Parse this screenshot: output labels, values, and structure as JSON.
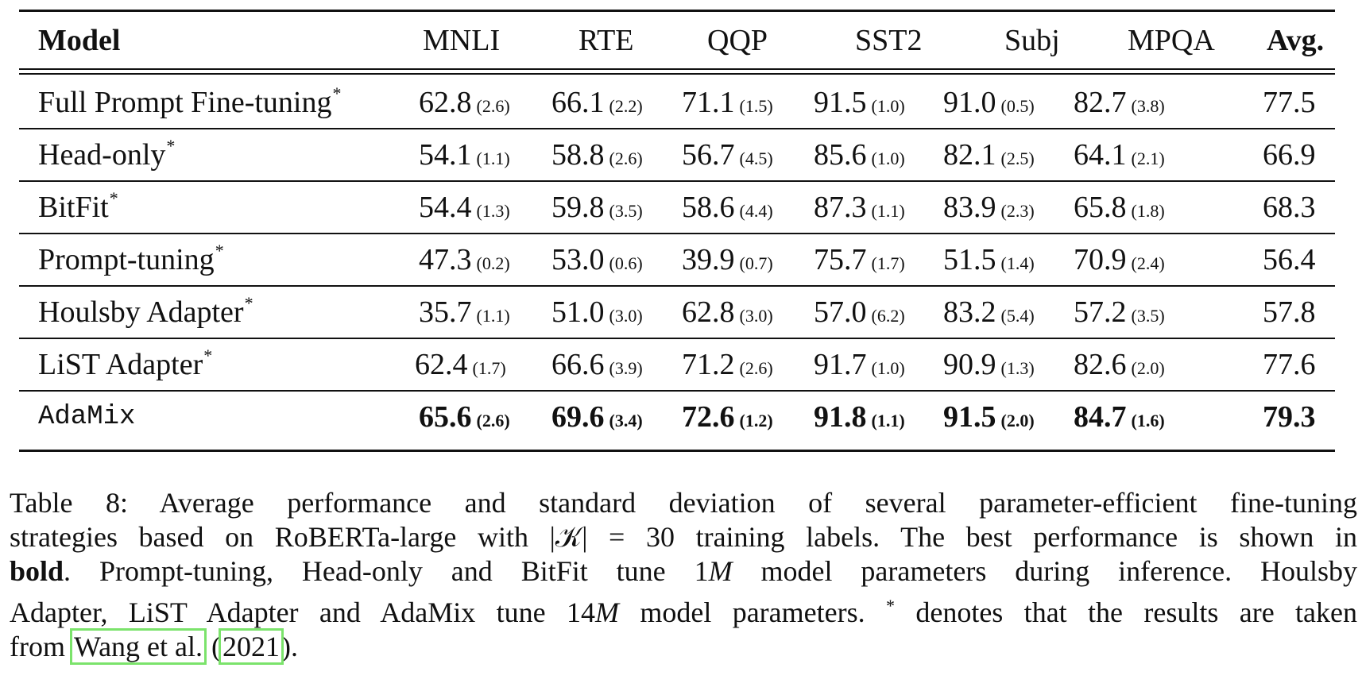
{
  "table": {
    "headers": [
      "Model",
      "MNLI",
      "RTE",
      "QQP",
      "SST2",
      "Subj",
      "MPQA",
      "Avg."
    ],
    "rows": [
      {
        "model": "Full Prompt Fine-tuning",
        "star": "*",
        "vals": [
          [
            "62.8",
            "(2.6)"
          ],
          [
            "66.1",
            "(2.2)"
          ],
          [
            "71.1",
            "(1.5)"
          ],
          [
            "91.5",
            "(1.0)"
          ],
          [
            "91.0",
            "(0.5)"
          ],
          [
            "82.7",
            "(3.8)"
          ]
        ],
        "avg": "77.5"
      },
      {
        "model": "Head-only",
        "star": "*",
        "vals": [
          [
            "54.1",
            "(1.1)"
          ],
          [
            "58.8",
            "(2.6)"
          ],
          [
            "56.7",
            "(4.5)"
          ],
          [
            "85.6",
            "(1.0)"
          ],
          [
            "82.1",
            "(2.5)"
          ],
          [
            "64.1",
            "(2.1)"
          ]
        ],
        "avg": "66.9"
      },
      {
        "model": "BitFit",
        "star": "*",
        "vals": [
          [
            "54.4",
            "(1.3)"
          ],
          [
            "59.8",
            "(3.5)"
          ],
          [
            "58.6",
            "(4.4)"
          ],
          [
            "87.3",
            "(1.1)"
          ],
          [
            "83.9",
            "(2.3)"
          ],
          [
            "65.8",
            "(1.8)"
          ]
        ],
        "avg": "68.3"
      },
      {
        "model": "Prompt-tuning",
        "star": "*",
        "vals": [
          [
            "47.3",
            "(0.2)"
          ],
          [
            "53.0",
            "(0.6)"
          ],
          [
            "39.9",
            "(0.7)"
          ],
          [
            "75.7",
            "(1.7)"
          ],
          [
            "51.5",
            "(1.4)"
          ],
          [
            "70.9",
            "(2.4)"
          ]
        ],
        "avg": "56.4"
      },
      {
        "model": "Houlsby Adapter",
        "star": "*",
        "vals": [
          [
            "35.7",
            "(1.1)"
          ],
          [
            "51.0",
            "(3.0)"
          ],
          [
            "62.8",
            "(3.0)"
          ],
          [
            "57.0",
            "(6.2)"
          ],
          [
            "83.2",
            "(5.4)"
          ],
          [
            "57.2",
            "(3.5)"
          ]
        ],
        "avg": "57.8"
      },
      {
        "model": "LiST Adapter",
        "star": "*",
        "vals": [
          [
            "62.4",
            "(1.7)"
          ],
          [
            "66.6",
            "(3.9)"
          ],
          [
            "71.2",
            "(2.6)"
          ],
          [
            "91.7",
            "(1.0)"
          ],
          [
            "90.9",
            "(1.3)"
          ],
          [
            "82.6",
            "(2.0)"
          ]
        ],
        "avg": "77.6"
      },
      {
        "model": "AdaMix",
        "star": "",
        "vals": [
          [
            "65.6",
            "(2.6)"
          ],
          [
            "69.6",
            "(3.4)"
          ],
          [
            "72.6",
            "(1.2)"
          ],
          [
            "91.8",
            "(1.1)"
          ],
          [
            "91.5",
            "(2.0)"
          ],
          [
            "84.7",
            "(1.6)"
          ]
        ],
        "avg": "79.3"
      }
    ]
  },
  "caption": {
    "line1": "Table 8: Average performance and standard deviation of several parameter-efficient fine-tuning",
    "line2_a": "strategies based on RoBERTa-large with |",
    "line2_k": "𝒦",
    "line2_b": "| = 30 training labels. The best performance is shown in",
    "line3_bold": "bold",
    "line3_a": ". Prompt-tuning, Head-only and BitFit tune 1",
    "line3_m": "M",
    "line3_b": " model parameters during inference. Houlsby",
    "line4_a": "Adapter, LiST Adapter and AdaMix tune 14",
    "line4_m": "M",
    "line4_b": " model parameters. ",
    "line4_star": "*",
    "line4_c": " denotes that the results are taken",
    "line5_a": "from ",
    "cite_author": "Wang et al.",
    "line5_b": " (",
    "cite_year": "2021",
    "line5_c": ")."
  },
  "colors": {
    "citation_box": "#7be36b",
    "text": "#111111"
  }
}
